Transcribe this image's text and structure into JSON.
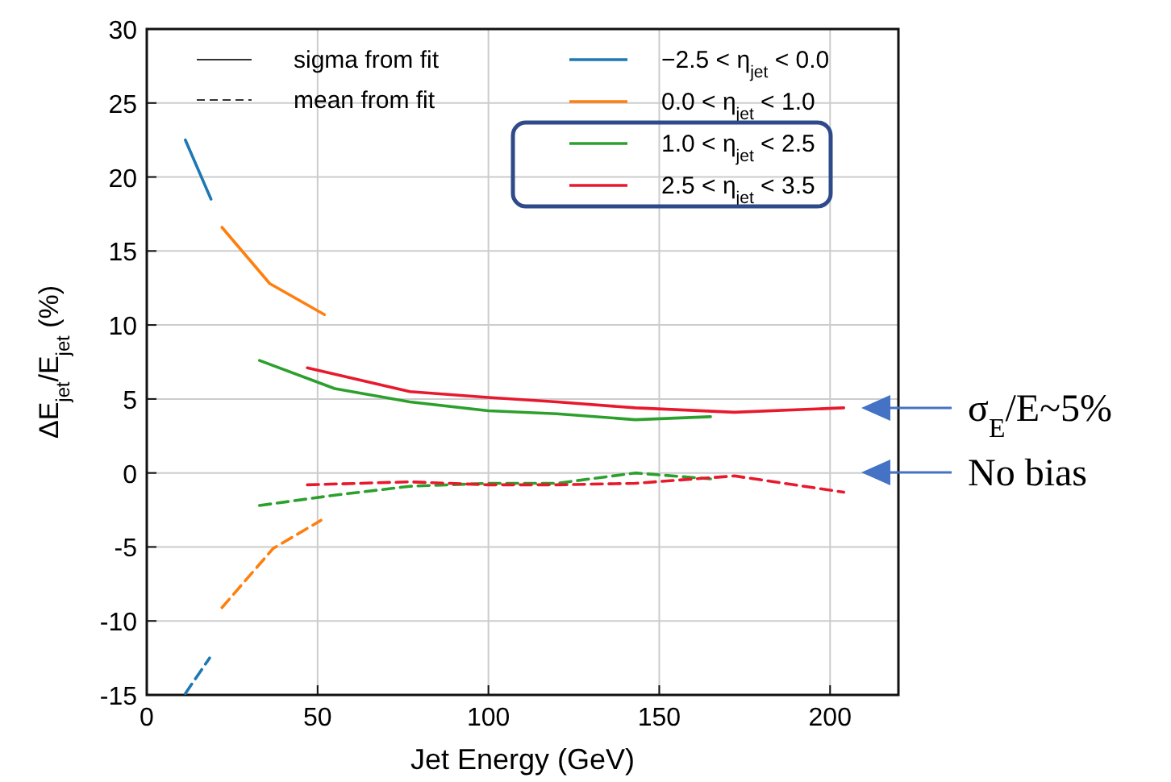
{
  "chart_data": {
    "type": "line",
    "xlabel": "Jet Energy (GeV)",
    "ylabel": "ΔE$_{jet}$/E$_{jet}$ (%)",
    "xlim": [
      0,
      220
    ],
    "xticks": [
      0,
      50,
      100,
      150,
      200
    ],
    "ylim": [
      -15,
      30
    ],
    "yticks": [
      -15,
      -10,
      -5,
      0,
      5,
      10,
      15,
      20,
      25,
      30
    ],
    "grid": true,
    "legend": "top",
    "line_style": "solid",
    "series": [
      {
        "name": "−2.5 < η$_{jet}$ < 0.0",
        "color": "#1f77b4",
        "x": [
          11.3,
          18.8
        ],
        "values": [
          22.5,
          18.5
        ]
      },
      {
        "name": "0.0 < η$_{jet}$ < 1.0",
        "color": "#ff7f0e",
        "x": [
          22,
          36,
          52
        ],
        "values": [
          16.6,
          12.8,
          10.7
        ]
      },
      {
        "name": "1.0 < η$_{jet}$ < 2.5",
        "color": "#2ca02c",
        "x": [
          33,
          55,
          77,
          100,
          120,
          143,
          165
        ],
        "values": [
          7.6,
          5.7,
          4.8,
          4.2,
          4.0,
          3.6,
          3.8
        ]
      },
      {
        "name": "2.5 < η$_{jet}$ < 3.5",
        "color": "#e8192c",
        "x": [
          47,
          77,
          100,
          120,
          143,
          172,
          204
        ],
        "values": [
          7.1,
          5.5,
          5.1,
          4.8,
          4.4,
          4.1,
          4.4
        ]
      },
      {
        "color": "#1f77b4",
        "line_style": "dashed",
        "x": [
          11.3,
          18.4
        ],
        "values": [
          -14.9,
          -12.5
        ]
      },
      {
        "color": "#ff7f0e",
        "line_style": "dashed",
        "x": [
          22,
          37,
          51
        ],
        "values": [
          -9.1,
          -5.1,
          -3.2
        ]
      },
      {
        "color": "#2ca02c",
        "line_style": "dashed",
        "x": [
          33,
          55,
          77,
          100,
          120,
          143,
          165
        ],
        "values": [
          -2.2,
          -1.5,
          -0.9,
          -0.7,
          -0.7,
          0.0,
          -0.4
        ]
      },
      {
        "color": "#e8192c",
        "line_style": "dashed",
        "x": [
          47,
          77,
          100,
          120,
          143,
          172,
          204
        ],
        "values": [
          -0.8,
          -0.6,
          -0.8,
          -0.8,
          -0.7,
          -0.2,
          -1.3
        ]
      }
    ],
    "annotations": [
      "sigma from fit",
      "mean from fit",
      "σ$_{E}$/E~5%",
      "No bias"
    ]
  }
}
